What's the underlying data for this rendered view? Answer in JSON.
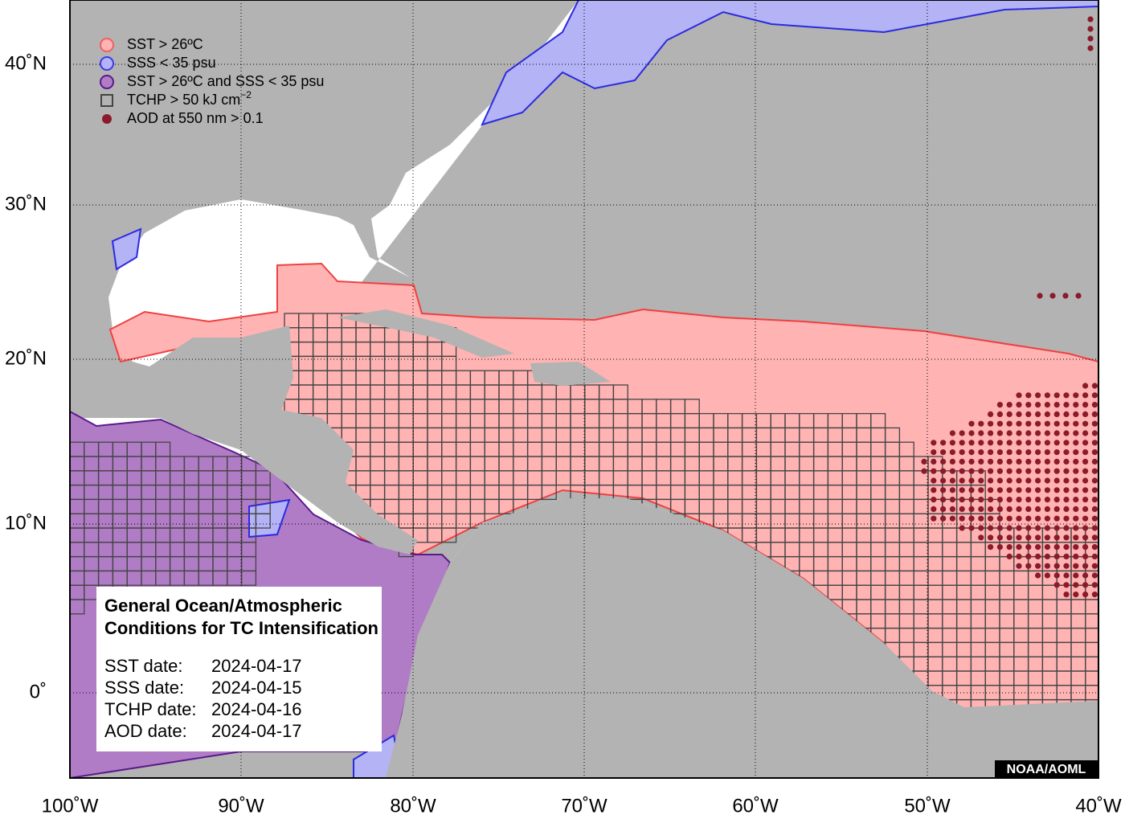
{
  "map": {
    "legend": [
      {
        "text": "SST > 26ºC"
      },
      {
        "text": "SSS < 35 psu"
      },
      {
        "text": "SST > 26ºC and SSS < 35 psu"
      },
      {
        "text": "TCHP > 50 kJ cm",
        "sup": "−2"
      },
      {
        "text": "AOD at 550 nm > 0.1"
      }
    ],
    "x_labels": [
      "100˚W",
      "90˚W",
      "80˚W",
      "70˚W",
      "60˚W",
      "50˚W",
      "40˚W"
    ],
    "y_labels": [
      "40˚N",
      "30˚N",
      "20˚N",
      "10˚N",
      "0˚"
    ],
    "info": {
      "title": [
        "General Ocean/Atmospheric",
        "Conditions for TC Intensification"
      ],
      "dates": [
        {
          "label": "SST date:",
          "value": "2024-04-17"
        },
        {
          "label": "SSS date:",
          "value": "2024-04-15"
        },
        {
          "label": "TCHP date:",
          "value": "2024-04-16"
        },
        {
          "label": "AOD date:",
          "value": "2024-04-17"
        }
      ]
    },
    "credit": "NOAA/AOML"
  }
}
